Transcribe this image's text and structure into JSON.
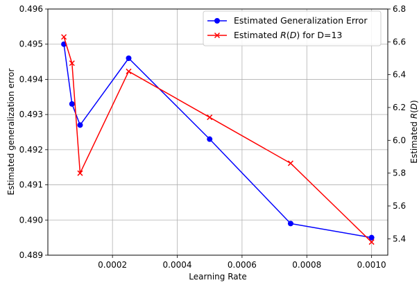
{
  "chart_data": {
    "type": "line",
    "x": [
      5e-05,
      7.5e-05,
      0.0001,
      0.00025,
      0.0005,
      0.00075,
      0.001
    ],
    "xlabel": "Learning Rate",
    "xlim": [
      5e-07,
      0.00105
    ],
    "xticks": [
      0.0002,
      0.0004,
      0.0006,
      0.0008,
      0.001
    ],
    "xtick_labels": [
      "0.0002",
      "0.0004",
      "0.0006",
      "0.0008",
      "0.0010"
    ],
    "y_left": {
      "label": "Estimated generalization error",
      "lim": [
        0.489,
        0.496
      ],
      "ticks": [
        0.489,
        0.49,
        0.491,
        0.492,
        0.493,
        0.494,
        0.495,
        0.496
      ],
      "tick_labels": [
        "0.489",
        "0.490",
        "0.491",
        "0.492",
        "0.493",
        "0.494",
        "0.495",
        "0.496"
      ]
    },
    "y_right": {
      "label": "Estimated R(D)",
      "lim": [
        5.3,
        6.8
      ],
      "ticks": [
        5.4,
        5.6,
        5.8,
        6.0,
        6.2,
        6.4,
        6.6,
        6.8
      ],
      "tick_labels": [
        "5.4",
        "5.6",
        "5.8",
        "6.0",
        "6.2",
        "6.4",
        "6.6",
        "6.8"
      ]
    },
    "grid": true,
    "legend_position": "top-right",
    "series": [
      {
        "name": "Estimated Generalization Error",
        "axis": "left",
        "color": "#0000ff",
        "marker": "circle",
        "values": [
          0.495,
          0.4933,
          0.4927,
          0.4946,
          0.4923,
          0.4899,
          0.4895
        ]
      },
      {
        "name": "Estimated R(D) for D=13",
        "axis": "right",
        "color": "#ff0000",
        "marker": "x",
        "values": [
          6.63,
          6.47,
          5.8,
          6.42,
          6.14,
          5.86,
          5.38
        ]
      }
    ]
  }
}
